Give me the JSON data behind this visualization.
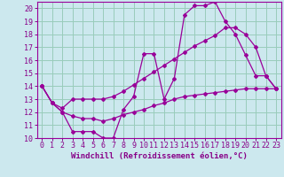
{
  "xlabel": "Windchill (Refroidissement éolien,°C)",
  "bg_color": "#cce8ee",
  "line_color": "#990099",
  "grid_color": "#99ccbb",
  "xlim": [
    -0.5,
    23.5
  ],
  "ylim": [
    10,
    20.5
  ],
  "xticks": [
    0,
    1,
    2,
    3,
    4,
    5,
    6,
    7,
    8,
    9,
    10,
    11,
    12,
    13,
    14,
    15,
    16,
    17,
    18,
    19,
    20,
    21,
    22,
    23
  ],
  "yticks": [
    10,
    11,
    12,
    13,
    14,
    15,
    16,
    17,
    18,
    19,
    20
  ],
  "line1_x": [
    0,
    1,
    2,
    3,
    4,
    5,
    6,
    7,
    8,
    9,
    10,
    11,
    12,
    13,
    14,
    15,
    16,
    17,
    18,
    19,
    20,
    21,
    22,
    23
  ],
  "line1_y": [
    14,
    12.7,
    12,
    10.5,
    10.5,
    10.5,
    10,
    10,
    12.2,
    13.2,
    16.5,
    16.5,
    13,
    14.6,
    19.5,
    20.2,
    20.2,
    20.5,
    19,
    18,
    16.4,
    14.8,
    14.8,
    13.8
  ],
  "line2_x": [
    0,
    1,
    2,
    3,
    4,
    5,
    6,
    7,
    8,
    9,
    10,
    11,
    12,
    13,
    14,
    15,
    16,
    17,
    18,
    19,
    20,
    21,
    22,
    23
  ],
  "line2_y": [
    14,
    12.7,
    12.3,
    13.0,
    13.0,
    13.0,
    13.0,
    13.2,
    13.6,
    14.1,
    14.6,
    15.1,
    15.6,
    16.1,
    16.6,
    17.1,
    17.5,
    17.9,
    18.5,
    18.5,
    18.0,
    17.0,
    14.8,
    13.8
  ],
  "line3_x": [
    0,
    1,
    2,
    3,
    4,
    5,
    6,
    7,
    8,
    9,
    10,
    11,
    12,
    13,
    14,
    15,
    16,
    17,
    18,
    19,
    20,
    21,
    22,
    23
  ],
  "line3_y": [
    14,
    12.7,
    12.0,
    11.7,
    11.5,
    11.5,
    11.3,
    11.5,
    11.8,
    12.0,
    12.2,
    12.5,
    12.7,
    13.0,
    13.2,
    13.3,
    13.4,
    13.5,
    13.6,
    13.7,
    13.8,
    13.8,
    13.8,
    13.8
  ],
  "font_color": "#880088",
  "tick_fontsize": 6,
  "label_fontsize": 6.5
}
